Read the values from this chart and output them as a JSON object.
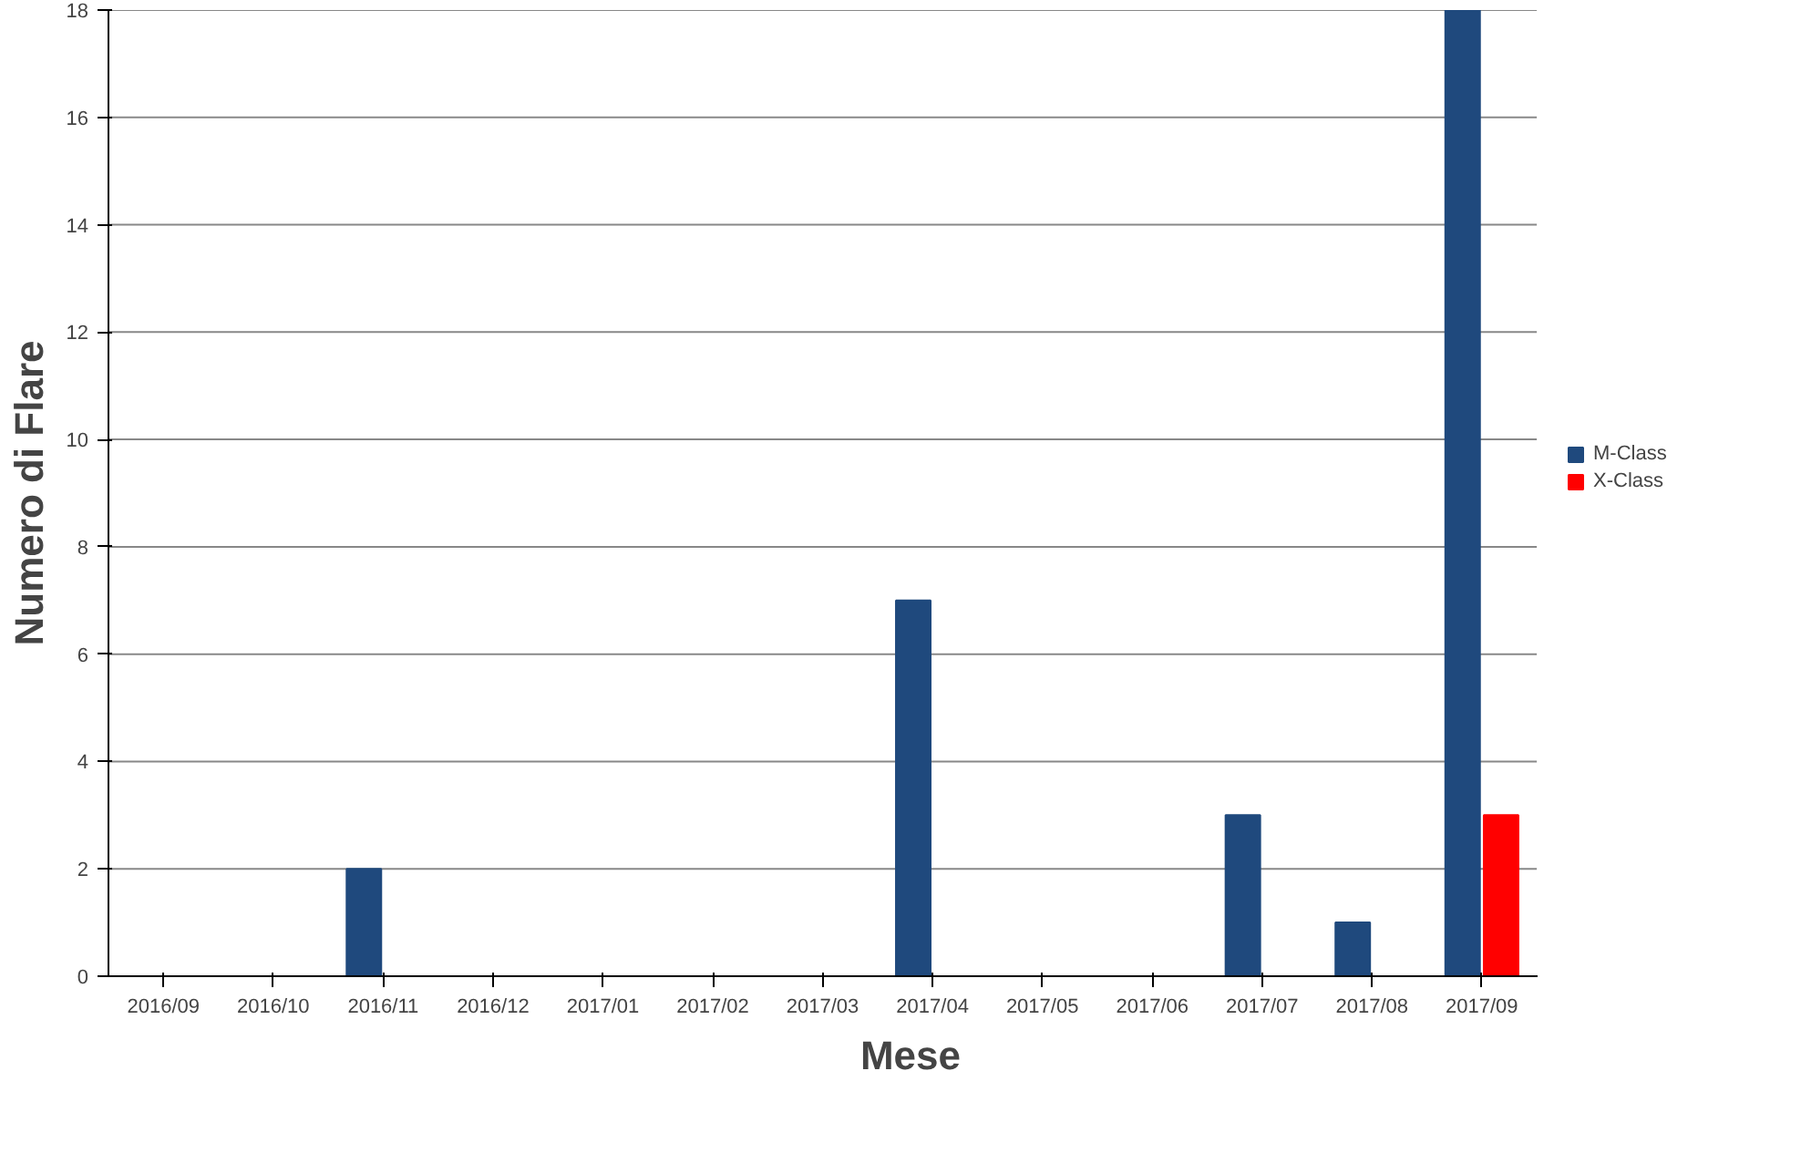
{
  "chart_data": {
    "type": "bar",
    "xlabel": "Mese",
    "ylabel": "Numero di Flare",
    "categories": [
      "2016/09",
      "2016/10",
      "2016/11",
      "2016/12",
      "2017/01",
      "2017/02",
      "2017/03",
      "2017/04",
      "2017/05",
      "2017/06",
      "2017/07",
      "2017/08",
      "2017/09"
    ],
    "series": [
      {
        "name": "M-Class",
        "color": "#1f497d",
        "values": [
          0,
          0,
          2,
          0,
          0,
          0,
          0,
          7,
          0,
          0,
          3,
          1,
          18
        ]
      },
      {
        "name": "X-Class",
        "color": "#ff0000",
        "values": [
          0,
          0,
          0,
          0,
          0,
          0,
          0,
          0,
          0,
          0,
          0,
          0,
          3
        ]
      }
    ],
    "ylim": [
      0,
      18
    ],
    "yticks": [
      0,
      2,
      4,
      6,
      8,
      10,
      12,
      14,
      16,
      18
    ],
    "grid": "y",
    "legend": "right"
  }
}
